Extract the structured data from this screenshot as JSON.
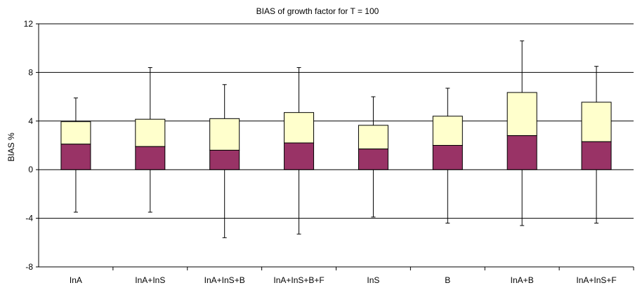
{
  "chart_data": {
    "type": "box",
    "title": "BIAS of growth factor for T = 100",
    "xlabel": "",
    "ylabel": "BIAS %",
    "ylim": [
      -8,
      12
    ],
    "yticks": [
      -8,
      -4,
      0,
      4,
      8,
      12
    ],
    "ytick_labels": [
      "-8",
      "-4",
      "0",
      "4",
      "8",
      "12"
    ],
    "grid": "horizontal",
    "legend": "none",
    "categories": [
      "InA",
      "InA+InS",
      "InA+InS+B",
      "InA+InS+B+F",
      "InS",
      "B",
      "InA+B",
      "InA+InS+F"
    ],
    "series": [
      {
        "values_role": "whisker_low",
        "values": [
          -3.5,
          -3.5,
          -5.6,
          -5.3,
          -3.9,
          -4.4,
          -4.6,
          -4.4
        ]
      },
      {
        "values_role": "box_low",
        "values": [
          0.0,
          0.0,
          0.0,
          0.0,
          0.0,
          0.0,
          0.0,
          0.0
        ]
      },
      {
        "values_role": "median",
        "values": [
          2.1,
          1.9,
          1.6,
          2.2,
          1.7,
          2.0,
          2.8,
          2.3
        ]
      },
      {
        "values_role": "box_high",
        "values": [
          3.95,
          4.15,
          4.2,
          4.7,
          3.65,
          4.4,
          6.35,
          5.55
        ]
      },
      {
        "values_role": "whisker_high",
        "values": [
          5.9,
          8.4,
          7.0,
          8.4,
          6.0,
          6.7,
          10.6,
          8.5
        ]
      }
    ],
    "colors": {
      "lower_box": "#993366",
      "upper_box": "#ffffcc",
      "grid": "#000000"
    }
  }
}
